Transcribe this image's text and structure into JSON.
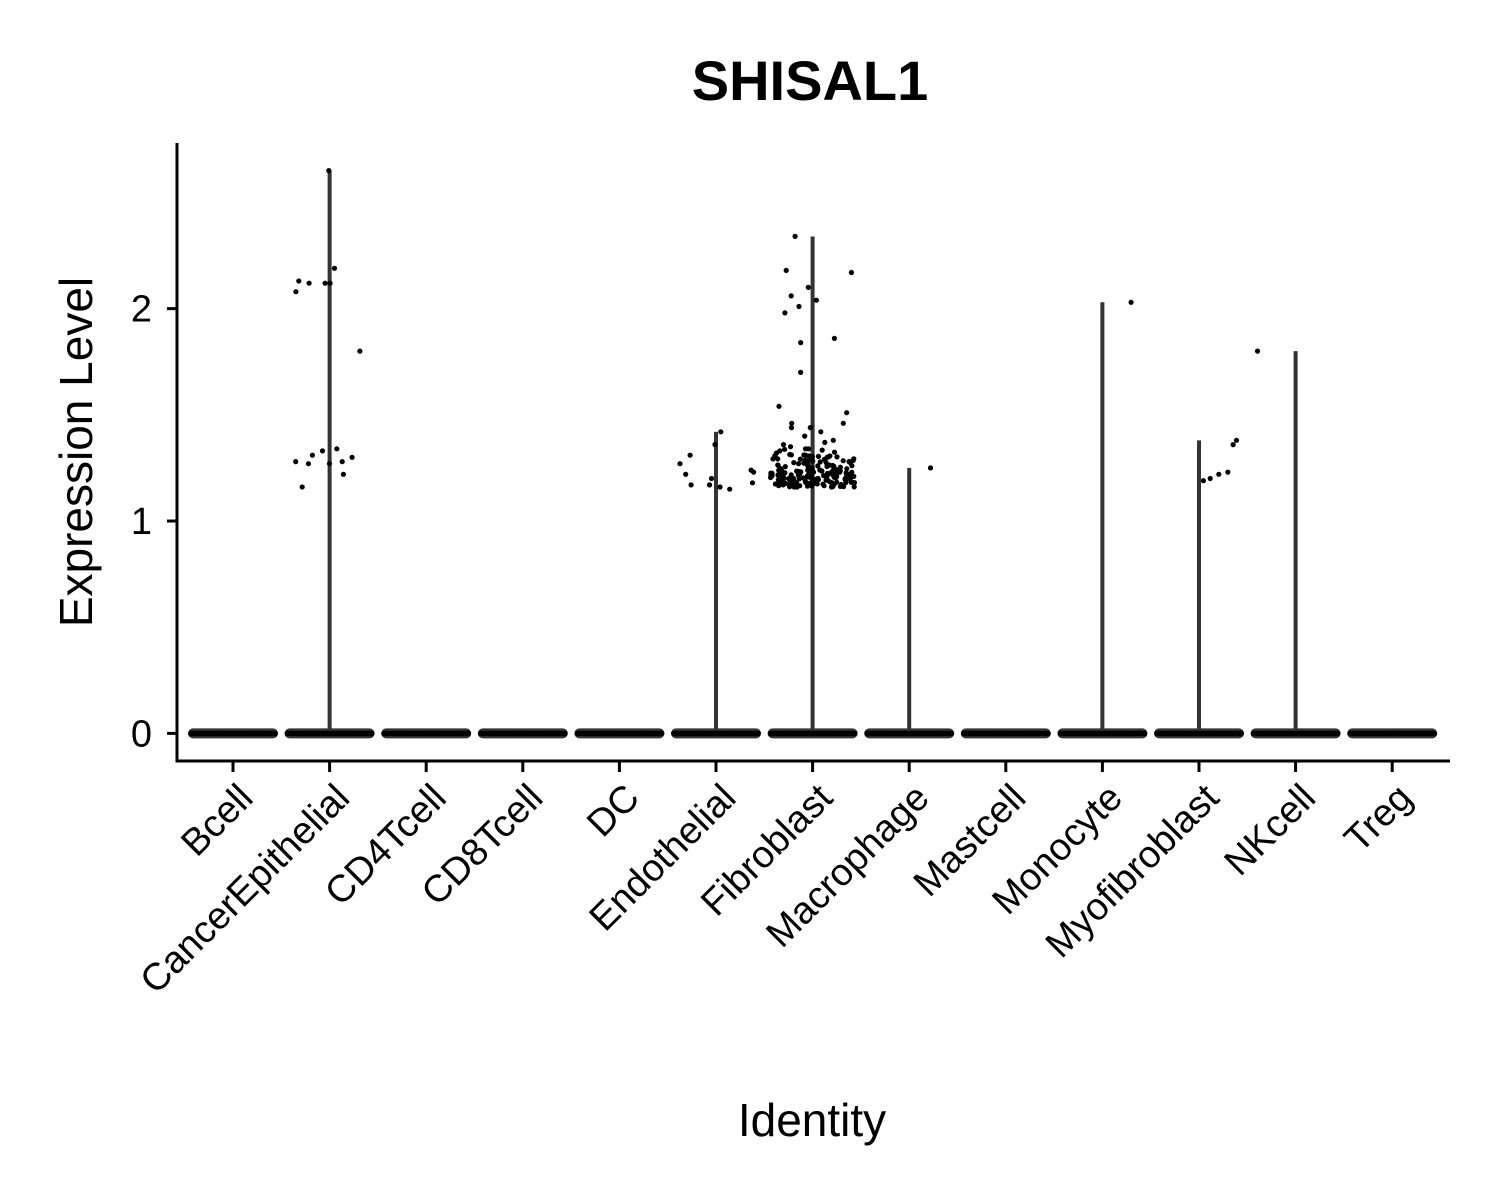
{
  "chart_data": {
    "type": "violin",
    "title": "SHISAL1",
    "xlabel": "Identity",
    "ylabel": "Expression Level",
    "ylim": [
      -0.13,
      2.78
    ],
    "yticks": [
      0,
      1,
      2
    ],
    "grid": false,
    "legend": "none",
    "categories": [
      "Bcell",
      "CancerEpithelial",
      "CD4Tcell",
      "CD8Tcell",
      "DC",
      "Endothelial",
      "Fibroblast",
      "Macrophage",
      "Mastcell",
      "Monocyte",
      "Myofibroblast",
      "NKcell",
      "Treg"
    ],
    "max_values": [
      0,
      2.65,
      0,
      0,
      0,
      1.42,
      2.34,
      1.25,
      0,
      2.03,
      1.38,
      1.8,
      0
    ],
    "points": [
      {
        "category": "CancerEpithelial",
        "values": [
          2.65,
          2.19,
          2.13,
          2.12,
          2.12,
          2.12,
          2.08,
          1.8,
          1.34,
          1.33,
          1.31,
          1.3,
          1.28,
          1.28,
          1.27,
          1.27,
          1.22,
          1.16
        ]
      },
      {
        "category": "Endothelial",
        "values": [
          1.42,
          1.36,
          1.31,
          1.27,
          1.24,
          1.23,
          1.22,
          1.2,
          1.18,
          1.17,
          1.17,
          1.16,
          1.15
        ]
      },
      {
        "category": "Fibroblast",
        "values": [
          2.34,
          2.18,
          2.17,
          2.1,
          2.06,
          2.04,
          2.01,
          1.98,
          1.86,
          1.84,
          1.7,
          1.54,
          1.51,
          1.46,
          1.46,
          1.44,
          1.44,
          1.42,
          1.4,
          1.38,
          1.37,
          1.36,
          1.35,
          1.34,
          1.33,
          1.32,
          1.31,
          1.3,
          1.29,
          1.28,
          1.27,
          1.26,
          1.25,
          1.24,
          1.23,
          1.22,
          1.21,
          1.2,
          1.19,
          1.18,
          1.17,
          1.16
        ]
      },
      {
        "category": "Macrophage",
        "values": [
          1.25
        ]
      },
      {
        "category": "Monocyte",
        "values": [
          2.03
        ]
      },
      {
        "category": "Myofibroblast",
        "values": [
          1.38,
          1.36,
          1.23,
          1.22,
          1.2,
          1.19
        ]
      },
      {
        "category": "NKcell",
        "values": [
          1.8
        ]
      }
    ],
    "fibroblast_cluster": {
      "count": 170,
      "range": [
        1.16,
        1.36
      ]
    }
  }
}
